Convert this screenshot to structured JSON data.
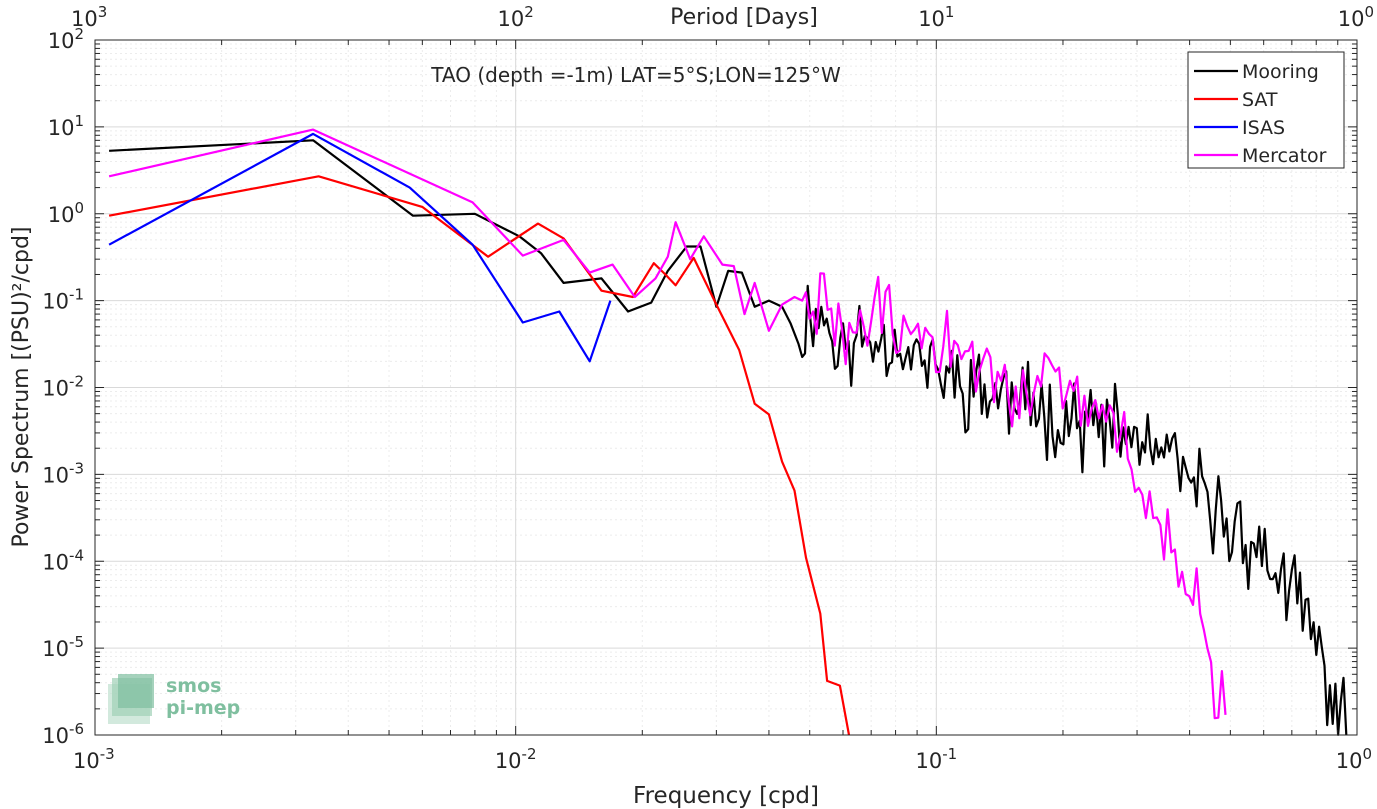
{
  "chart_data": {
    "type": "line",
    "title": "TAO (depth =-1m) LAT=5°S;LON=125°W",
    "xlabel": "Frequency [cpd]",
    "ylabel": "Power Spectrum [(PSU)²/cpd]",
    "top_xlabel": "Period [Days]",
    "x_scale": "log",
    "y_scale": "log",
    "xlim": [
      0.001,
      1
    ],
    "ylim": [
      1e-06,
      100
    ],
    "grid": true,
    "legend_position": "top-right",
    "x_ticks": [
      {
        "value": 0.001,
        "base": "10",
        "exp": "-3"
      },
      {
        "value": 0.01,
        "base": "10",
        "exp": "-2"
      },
      {
        "value": 0.1,
        "base": "10",
        "exp": "-1"
      },
      {
        "value": 1,
        "base": "10",
        "exp": "0"
      }
    ],
    "top_ticks": [
      {
        "freq": 0.001,
        "base": "10",
        "exp": "3"
      },
      {
        "freq": 0.01,
        "base": "10",
        "exp": "2"
      },
      {
        "freq": 0.1,
        "base": "10",
        "exp": "1"
      },
      {
        "freq": 1,
        "base": "10",
        "exp": "0"
      }
    ],
    "y_ticks": [
      {
        "value": 100,
        "base": "10",
        "exp": "2"
      },
      {
        "value": 10,
        "base": "10",
        "exp": "1"
      },
      {
        "value": 1,
        "base": "10",
        "exp": "0"
      },
      {
        "value": 0.1,
        "base": "10",
        "exp": "-1"
      },
      {
        "value": 0.01,
        "base": "10",
        "exp": "-2"
      },
      {
        "value": 0.001,
        "base": "10",
        "exp": "-3"
      },
      {
        "value": 0.0001,
        "base": "10",
        "exp": "-4"
      },
      {
        "value": 1e-05,
        "base": "10",
        "exp": "-5"
      },
      {
        "value": 1e-06,
        "base": "10",
        "exp": "-6"
      }
    ],
    "series": [
      {
        "name": "Mooring",
        "color": "#000000",
        "noise": {
          "x_start": 0.048,
          "x_end": 0.95,
          "step": 1.015,
          "amp": 0.3,
          "seed": 11
        },
        "points": [
          [
            0.00108,
            5.3
          ],
          [
            0.0033,
            7.0
          ],
          [
            0.0057,
            0.95
          ],
          [
            0.008,
            1.0
          ],
          [
            0.0102,
            0.55
          ],
          [
            0.0115,
            0.35
          ],
          [
            0.013,
            0.16
          ],
          [
            0.016,
            0.18
          ],
          [
            0.0185,
            0.075
          ],
          [
            0.021,
            0.095
          ],
          [
            0.023,
            0.22
          ],
          [
            0.0255,
            0.42
          ],
          [
            0.0275,
            0.42
          ],
          [
            0.03,
            0.085
          ],
          [
            0.032,
            0.22
          ],
          [
            0.0345,
            0.21
          ],
          [
            0.037,
            0.085
          ],
          [
            0.04,
            0.1
          ],
          [
            0.043,
            0.085
          ],
          [
            0.045,
            0.055
          ],
          [
            0.047,
            0.032
          ],
          [
            0.05,
            0.08
          ],
          [
            0.053,
            0.07
          ],
          [
            0.056,
            0.05
          ],
          [
            0.059,
            0.025
          ],
          [
            0.07,
            0.04
          ],
          [
            0.085,
            0.03
          ],
          [
            0.1,
            0.015
          ],
          [
            0.13,
            0.009
          ],
          [
            0.17,
            0.006
          ],
          [
            0.22,
            0.004
          ],
          [
            0.28,
            0.0028
          ],
          [
            0.35,
            0.0016
          ],
          [
            0.45,
            0.00042
          ],
          [
            0.55,
            0.00017
          ],
          [
            0.65,
            7e-05
          ],
          [
            0.75,
            2.5e-05
          ],
          [
            0.85,
            4e-06
          ],
          [
            0.95,
            1.1e-06
          ]
        ]
      },
      {
        "name": "SAT",
        "color": "#ff0000",
        "noise": null,
        "points": [
          [
            0.00108,
            0.95
          ],
          [
            0.0034,
            2.7
          ],
          [
            0.006,
            1.2
          ],
          [
            0.0086,
            0.32
          ],
          [
            0.0113,
            0.77
          ],
          [
            0.013,
            0.52
          ],
          [
            0.016,
            0.13
          ],
          [
            0.019,
            0.11
          ],
          [
            0.0213,
            0.27
          ],
          [
            0.0227,
            0.2
          ],
          [
            0.024,
            0.15
          ],
          [
            0.0265,
            0.31
          ],
          [
            0.03,
            0.09
          ],
          [
            0.034,
            0.027
          ],
          [
            0.037,
            0.0065
          ],
          [
            0.04,
            0.0049
          ],
          [
            0.043,
            0.0014
          ],
          [
            0.046,
            0.00065
          ],
          [
            0.049,
            0.00011
          ],
          [
            0.053,
            2.5e-05
          ],
          [
            0.055,
            4.2e-06
          ],
          [
            0.059,
            3.7e-06
          ],
          [
            0.062,
            1e-06
          ]
        ]
      },
      {
        "name": "ISAS",
        "color": "#0000ff",
        "noise": null,
        "points": [
          [
            0.00108,
            0.44
          ],
          [
            0.0033,
            8.3
          ],
          [
            0.0056,
            2.0
          ],
          [
            0.0079,
            0.44
          ],
          [
            0.0104,
            0.056
          ],
          [
            0.0127,
            0.075
          ],
          [
            0.015,
            0.02
          ],
          [
            0.0168,
            0.1
          ]
        ]
      },
      {
        "name": "Mercator",
        "color": "#ff00ff",
        "noise": {
          "x_start": 0.048,
          "x_end": 0.49,
          "step": 1.02,
          "amp": 0.3,
          "seed": 29
        },
        "points": [
          [
            0.00108,
            2.7
          ],
          [
            0.0033,
            9.3
          ],
          [
            0.0079,
            1.35
          ],
          [
            0.0104,
            0.33
          ],
          [
            0.013,
            0.5
          ],
          [
            0.015,
            0.21
          ],
          [
            0.017,
            0.26
          ],
          [
            0.0192,
            0.11
          ],
          [
            0.0215,
            0.18
          ],
          [
            0.023,
            0.32
          ],
          [
            0.024,
            0.8
          ],
          [
            0.026,
            0.3
          ],
          [
            0.028,
            0.55
          ],
          [
            0.031,
            0.26
          ],
          [
            0.033,
            0.25
          ],
          [
            0.035,
            0.07
          ],
          [
            0.037,
            0.16
          ],
          [
            0.04,
            0.045
          ],
          [
            0.043,
            0.09
          ],
          [
            0.046,
            0.11
          ],
          [
            0.05,
            0.06
          ],
          [
            0.055,
            0.13
          ],
          [
            0.06,
            0.035
          ],
          [
            0.07,
            0.07
          ],
          [
            0.085,
            0.045
          ],
          [
            0.1,
            0.03
          ],
          [
            0.13,
            0.017
          ],
          [
            0.17,
            0.01
          ],
          [
            0.22,
            0.006
          ],
          [
            0.28,
            0.0028
          ],
          [
            0.3,
            0.0009
          ],
          [
            0.35,
            0.0002
          ],
          [
            0.4,
            4.5e-05
          ],
          [
            0.45,
            6.7e-06
          ],
          [
            0.49,
            1e-06
          ]
        ]
      }
    ]
  },
  "logo": {
    "line1": "smos",
    "line2": "pi-mep",
    "color": "#7fbf9f"
  },
  "colors": {
    "axis": "#262626",
    "grid": "#d9d9d9",
    "plot_bg": "#ffffff"
  }
}
